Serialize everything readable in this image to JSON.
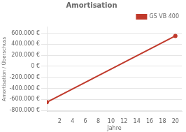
{
  "chart_data": {
    "type": "line",
    "title": "Amortisation",
    "x_label": "Jahre",
    "y_label": "Amortisation / Überschuss",
    "x": [
      0,
      20
    ],
    "series": [
      {
        "name": "GS VB 400",
        "color": "#c0392b",
        "values": [
          -650000,
          550000
        ],
        "marker": "circle"
      }
    ],
    "xlim": [
      0,
      21
    ],
    "xticks": [
      2,
      4,
      6,
      8,
      10,
      12,
      14,
      16,
      18,
      20
    ],
    "ylim": [
      -820000,
      720000
    ],
    "yticks": [
      {
        "value": 600000,
        "label": "600.000 €"
      },
      {
        "value": 400000,
        "label": "400.000 €"
      },
      {
        "value": 200000,
        "label": "200.000 €"
      },
      {
        "value": 0,
        "label": "0 €"
      },
      {
        "value": -200000,
        "label": "-200.000 €"
      },
      {
        "value": -400000,
        "label": "-400.000 €"
      },
      {
        "value": -600000,
        "label": "-600.000 €"
      },
      {
        "value": -800000,
        "label": "-800.000 €"
      }
    ],
    "grid": "y",
    "legend": "upper right"
  }
}
